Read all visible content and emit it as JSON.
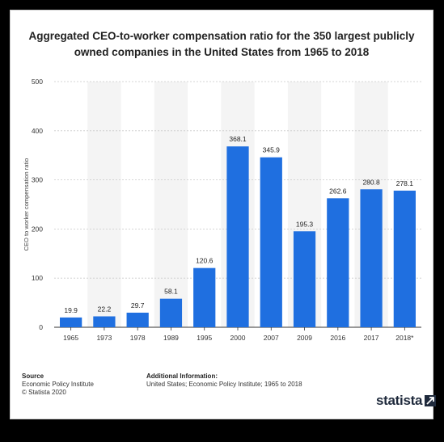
{
  "chart_data": {
    "type": "bar",
    "title": "Aggregated CEO-to-worker compensation ratio for the 350 largest publicly owned companies in the United States from 1965 to 2018",
    "xlabel": "",
    "ylabel": "CEO to worker compensation ratio",
    "categories": [
      "1965",
      "1973",
      "1978",
      "1989",
      "1995",
      "2000",
      "2007",
      "2009",
      "2016",
      "2017",
      "2018*"
    ],
    "values": [
      19.9,
      22.2,
      29.7,
      58.1,
      120.6,
      368.1,
      345.9,
      195.3,
      262.6,
      280.8,
      278.1
    ],
    "value_labels": [
      "19.9",
      "22.2",
      "29.7",
      "58.1",
      "120.6",
      "368.1",
      "345.9",
      "195.3",
      "262.6",
      "280.8",
      "278.1"
    ],
    "ylim": [
      0,
      500
    ],
    "yticks": [
      0,
      100,
      200,
      300,
      400,
      500
    ],
    "grid": true,
    "bar_color": "#1f6fe0"
  },
  "footer": {
    "source_label": "Source",
    "source_lines": [
      "Economic Policy Institute",
      "© Statista 2020"
    ],
    "info_label": "Additional Information:",
    "info_text": "United States; Economic Policy Institute; 1965 to 2018"
  },
  "logo": {
    "text": "statista",
    "icon": "statista-arrow-icon"
  }
}
